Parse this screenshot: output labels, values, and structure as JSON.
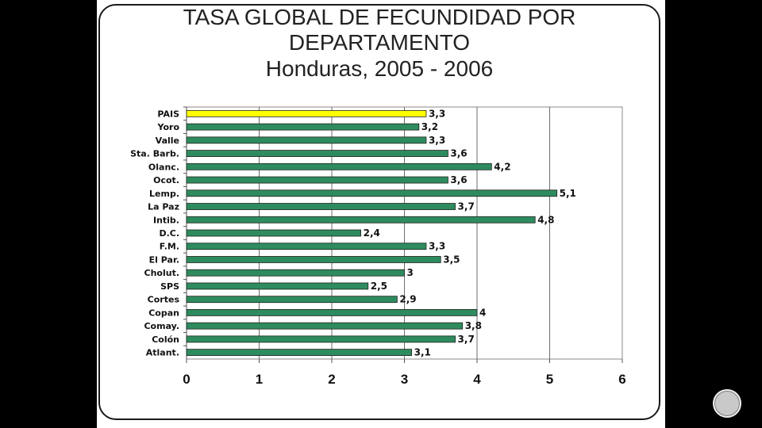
{
  "title": {
    "line1": "TASA GLOBAL DE FECUNDIDAD POR",
    "line2": "DEPARTAMENTO",
    "line3": "Honduras, 2005 - 2006"
  },
  "colors": {
    "bar": "#2e8b5e",
    "highlight": "#ffff00",
    "grid": "#6e6e6e"
  },
  "chart_data": {
    "type": "bar",
    "orientation": "horizontal",
    "categories": [
      "PAIS",
      "Yoro",
      "Valle",
      "Sta. Barb.",
      "Olanc.",
      "Ocot.",
      "Lemp.",
      "La Paz",
      "Intib.",
      "D.C.",
      "F.M.",
      "El Par.",
      "Cholut.",
      "SPS",
      "Cortes",
      "Copan",
      "Comay.",
      "Colón",
      "Atlant."
    ],
    "values": [
      3.3,
      3.2,
      3.3,
      3.6,
      4.2,
      3.6,
      5.1,
      3.7,
      4.8,
      2.4,
      3.3,
      3.5,
      3,
      2.5,
      2.9,
      4,
      3.8,
      3.7,
      3.1
    ],
    "value_labels": [
      "3,3",
      "3,2",
      "3,3",
      "3,6",
      "4,2",
      "3,6",
      "5,1",
      "3,7",
      "4,8",
      "2,4",
      "3,3",
      "3,5",
      "3",
      "2,5",
      "2,9",
      "4",
      "3,8",
      "3,7",
      "3,1"
    ],
    "highlight_category": "PAIS",
    "xlim": [
      0,
      6
    ],
    "xticks": [
      "0",
      "1",
      "2",
      "3",
      "4",
      "5",
      "6"
    ],
    "grid": "vertical",
    "legend": "none"
  }
}
